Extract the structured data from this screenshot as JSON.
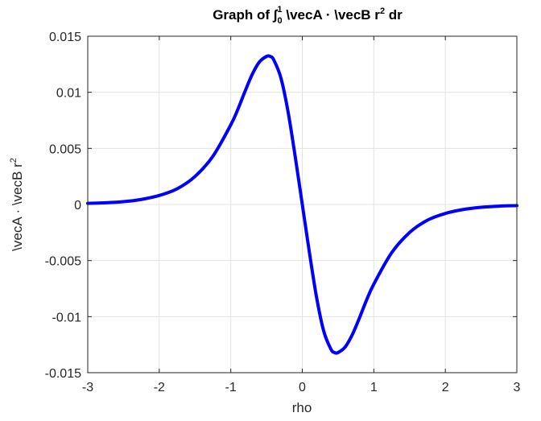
{
  "chart_data": {
    "type": "line",
    "title": {
      "prefix": "Graph of ∫",
      "lower_limit": "0",
      "upper_limit": "1",
      "body": " \\vecA · \\vecB r",
      "sup": "2",
      "suffix": " dr"
    },
    "xlabel": "rho",
    "ylabel": {
      "text": "\\vecA · \\vecB r",
      "sup": "2"
    },
    "xlim": [
      -3,
      3
    ],
    "ylim": [
      -0.015,
      0.015
    ],
    "xticks": [
      -3,
      -2,
      -1,
      0,
      1,
      2,
      3
    ],
    "xtick_labels": [
      "-3",
      "-2",
      "-1",
      "0",
      "1",
      "2",
      "3"
    ],
    "yticks": [
      -0.015,
      -0.01,
      -0.005,
      0,
      0.005,
      0.01,
      0.015
    ],
    "ytick_labels": [
      "-0.015",
      "-0.01",
      "-0.005",
      "0",
      "0.005",
      "0.01",
      "0.015"
    ],
    "grid": true,
    "series": [
      {
        "color": "#0000ff",
        "x": [
          -3.0,
          -2.75,
          -2.5,
          -2.25,
          -2.0,
          -1.75,
          -1.5,
          -1.25,
          -1.0,
          -0.9,
          -0.8,
          -0.7,
          -0.6,
          -0.5,
          -0.45,
          -0.4,
          -0.3,
          -0.2,
          -0.1,
          0.0,
          0.1,
          0.2,
          0.3,
          0.4,
          0.45,
          0.5,
          0.6,
          0.7,
          0.8,
          0.9,
          1.0,
          1.25,
          1.5,
          1.75,
          2.0,
          2.25,
          2.5,
          2.75,
          3.0
        ],
        "y": [
          0.0001,
          0.00015,
          0.00025,
          0.00045,
          0.0008,
          0.0014,
          0.0025,
          0.0043,
          0.0071,
          0.0085,
          0.0101,
          0.0116,
          0.0127,
          0.0132,
          0.0132,
          0.0129,
          0.0113,
          0.0083,
          0.0043,
          0.0,
          -0.0043,
          -0.0083,
          -0.0113,
          -0.0129,
          -0.0132,
          -0.0132,
          -0.0127,
          -0.0116,
          -0.0101,
          -0.0085,
          -0.0071,
          -0.0043,
          -0.0025,
          -0.0014,
          -0.0008,
          -0.00045,
          -0.00025,
          -0.00015,
          -0.0001
        ]
      }
    ]
  }
}
